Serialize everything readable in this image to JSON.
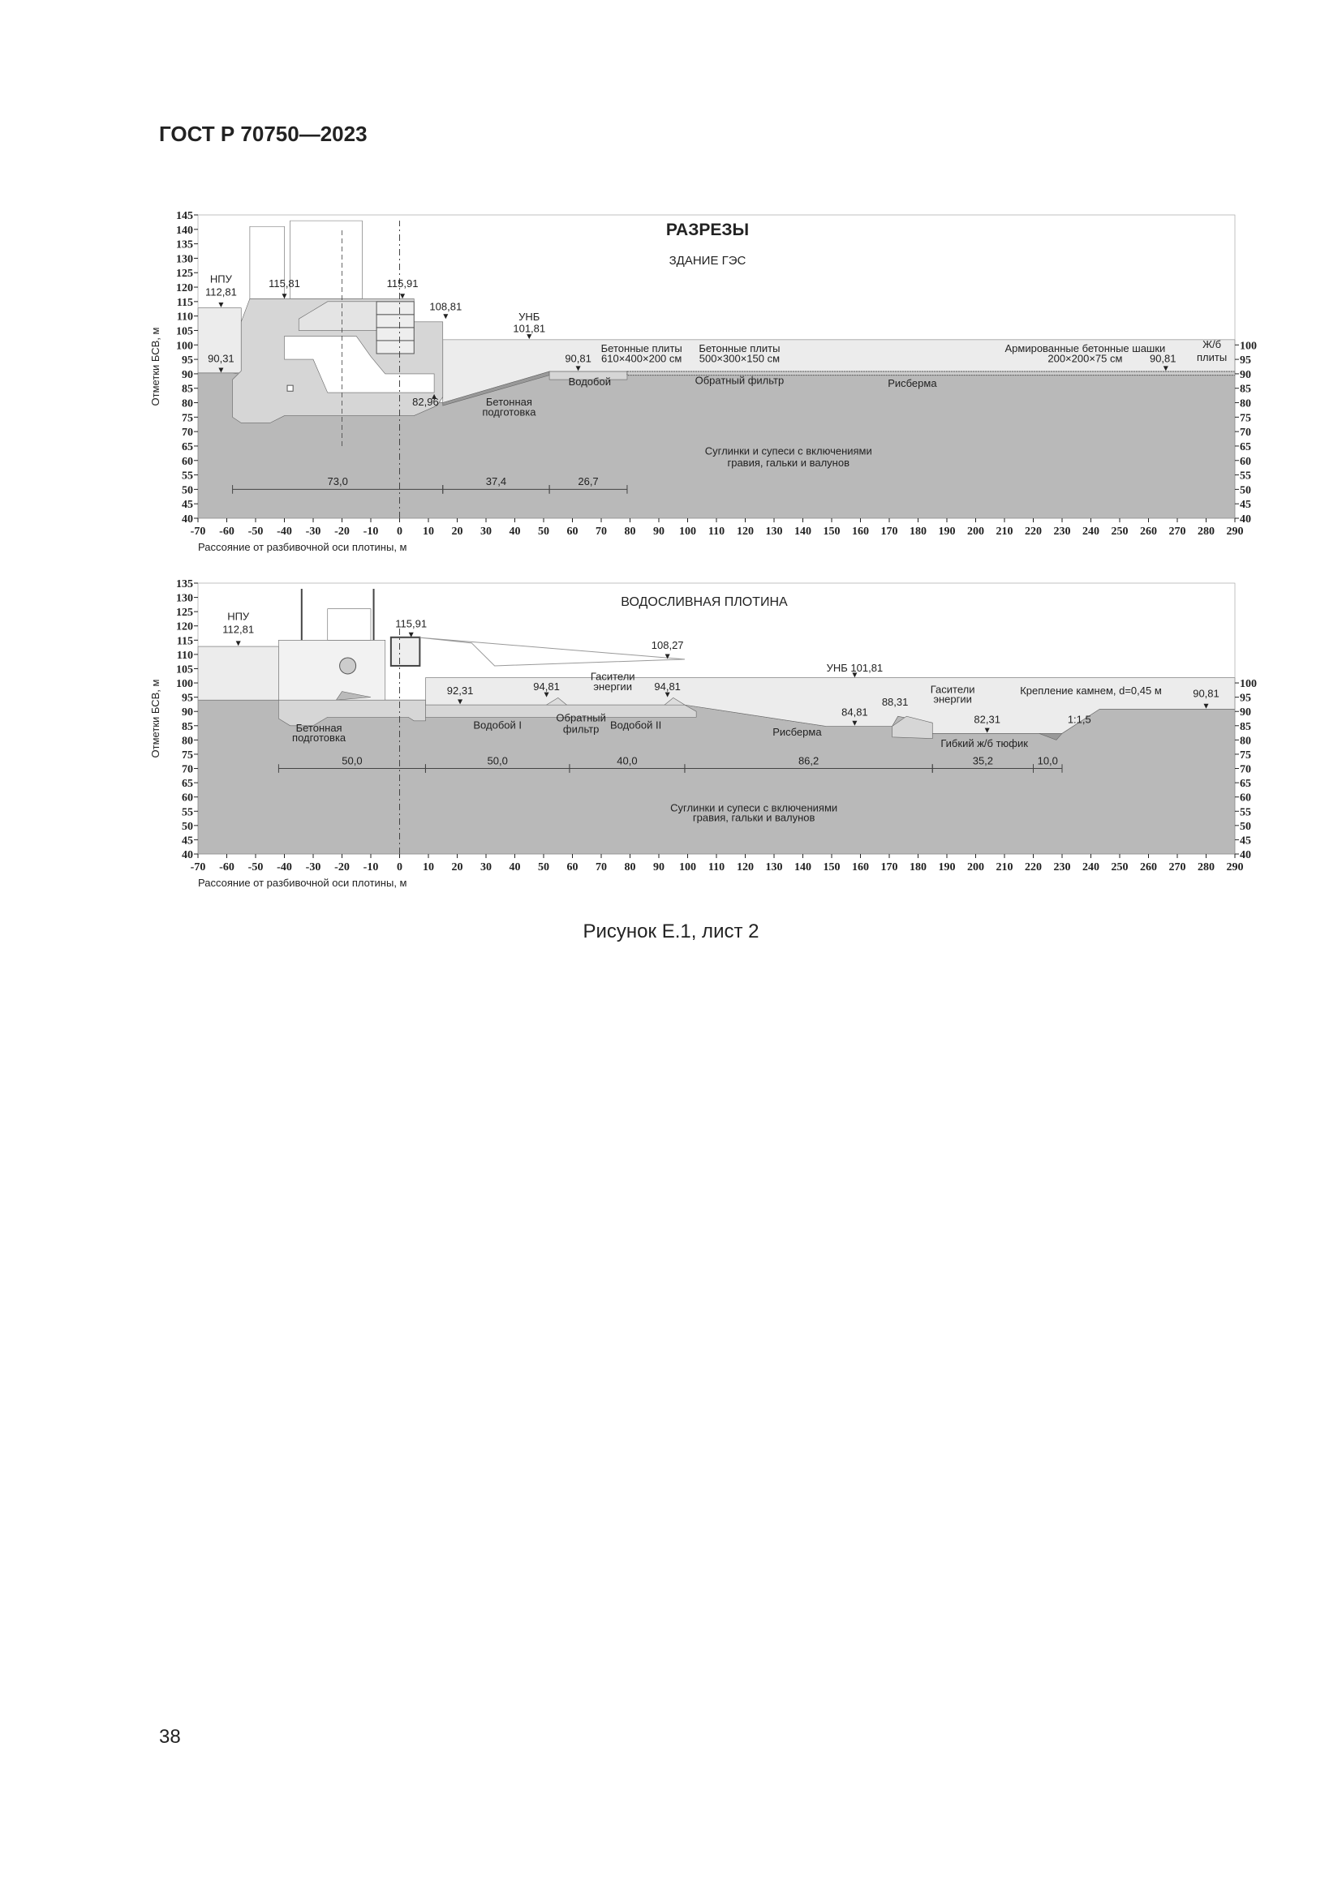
{
  "header": {
    "standard": "ГОСТ Р 70750—2023"
  },
  "page_number": "38",
  "caption": "Рисунок Е.1, лист 2",
  "colors": {
    "ground": "#b9b9b9",
    "structure": "#d6d6d6",
    "water": "#ececec",
    "line": "#555555"
  },
  "figure_title": "РАЗРЕЗЫ",
  "sections": [
    {
      "title": "ЗДАНИЕ ГЭС",
      "y_axis": {
        "label": "Отметки БСВ, м",
        "min": 40,
        "max": 145,
        "step": 5
      },
      "x_axis": {
        "label": "Рассояние от разбивочной оси плотины, м",
        "min": -70,
        "max": 290,
        "step": 10
      },
      "labels": {
        "npu": "НПУ",
        "npu_level": "112,81",
        "crest_left": "115,81",
        "crest_right": "115,91",
        "tail_wall": "108,81",
        "unb": "УНБ",
        "unb_level": "101,81",
        "upstream_bed": "90,31",
        "outlet": "82,96",
        "prep_1": "Бетонная",
        "prep_2": "подготовка",
        "apron_level": "90,81",
        "apron": "Водобой",
        "slabs1_1": "Бетонные плиты",
        "slabs1_2": "610×400×200 см",
        "slabs2_1": "Бетонные плиты",
        "slabs2_2": "500×300×150 см",
        "filter": "Обратный фильтр",
        "riprap": "Рисберма",
        "blocks_1": "Армированные бетонные шашки",
        "blocks_2": "200×200×75 см",
        "end_level": "90,81",
        "rc_1": "Ж/б",
        "rc_2": "плиты",
        "soil_1": "Суглинки и супеси с включениями",
        "soil_2": "гравия, гальки и валунов",
        "dim_1": "73,0",
        "dim_2": "37,4",
        "dim_3": "26,7"
      }
    },
    {
      "title": "ВОДОСЛИВНАЯ ПЛОТИНА",
      "y_axis": {
        "label": "Отметки БСВ, м",
        "min": 40,
        "max": 135,
        "step": 5
      },
      "x_axis": {
        "label": "Рассояние от разбивочной оси плотины, м",
        "min": -70,
        "max": 290,
        "step": 10
      },
      "labels": {
        "npu": "НПУ",
        "npu_level": "112,81",
        "crest": "115,91",
        "prep_1": "Бетонная",
        "prep_2": "подготовка",
        "apron1_level": "92,31",
        "baffle1": "94,81",
        "dissip_1": "Гасители",
        "dissip_2": "энергии",
        "baffle2": "94,81",
        "wall_level": "108,27",
        "apron1": "Водобой I",
        "filter_1": "Обратный",
        "filter_2": "фильтр",
        "apron2": "Водобой II",
        "unb": "УНБ 101,81",
        "riprap_level": "84,81",
        "riprap": "Рисберма",
        "sill_level": "88,31",
        "dissip2_1": "Гасители",
        "dissip2_2": "энергии",
        "mat_level": "82,31",
        "mat": "Гибкий ж/б тюфик",
        "stone": "Крепление камнем, d=0,45 м",
        "slope": "1:1,5",
        "end_level": "90,81",
        "soil_1": "Суглинки и супеси с включениями",
        "soil_2": "гравия, гальки и валунов",
        "dim_1": "50,0",
        "dim_2": "50,0",
        "dim_3": "40,0",
        "dim_4": "86,2",
        "dim_5": "35,2",
        "dim_6": "10,0"
      }
    }
  ]
}
